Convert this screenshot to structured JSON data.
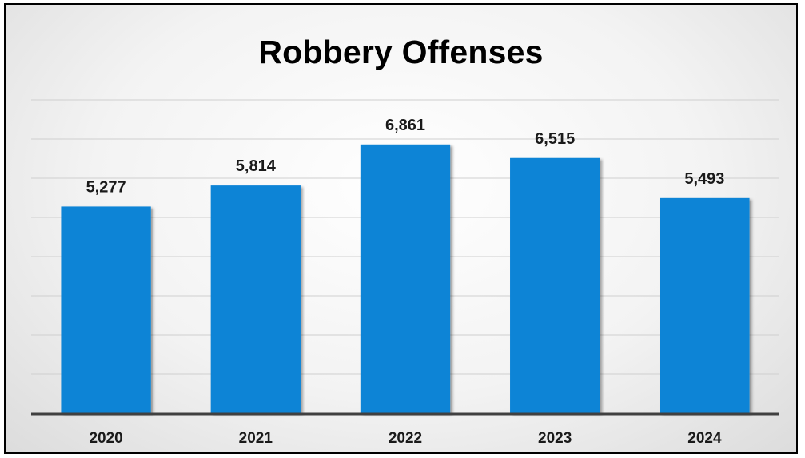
{
  "chart_data": {
    "type": "bar",
    "title": "Robbery Offenses",
    "categories": [
      "2020",
      "2021",
      "2022",
      "2023",
      "2024"
    ],
    "values": [
      5277,
      5814,
      6861,
      6515,
      5493
    ],
    "value_labels": [
      "5,277",
      "5,814",
      "6,861",
      "6,515",
      "5,493"
    ],
    "xlabel": "",
    "ylabel": "",
    "ylim": [
      0,
      8000
    ],
    "grid": true,
    "gridline_step": 1000,
    "legend": "none",
    "colors": {
      "bar": "#0d84d6",
      "gridline": "#cfcfcf",
      "axis": "#404040"
    }
  }
}
